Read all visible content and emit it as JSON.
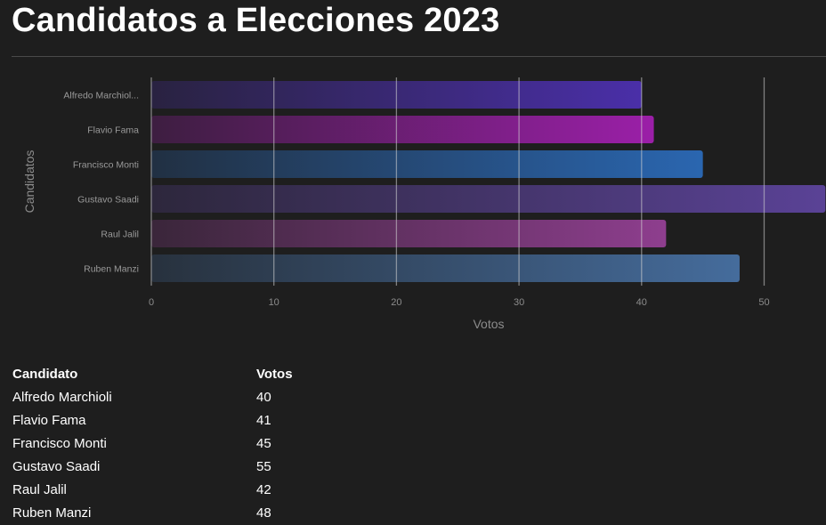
{
  "page_title": "Candidatos a Elecciones 2023",
  "chart_data": {
    "type": "bar",
    "orientation": "horizontal",
    "categories": [
      "Alfredo Marchiol...",
      "Flavio Fama",
      "Francisco Monti",
      "Gustavo Saadi",
      "Raul Jalil",
      "Ruben Manzi"
    ],
    "values": [
      40,
      41,
      45,
      55,
      42,
      48
    ],
    "xlabel": "Votos",
    "ylabel": "Candidatos",
    "xlim": [
      0,
      55
    ],
    "xticks": [
      0,
      10,
      20,
      30,
      40,
      50
    ],
    "grid": true,
    "bar_colors": [
      "#4a2fa8",
      "#9b1fa8",
      "#2a66b0",
      "#5a4296",
      "#8e3e8e",
      "#456c9c"
    ]
  },
  "table": {
    "headers": [
      "Candidato",
      "Votos"
    ],
    "rows": [
      [
        "Alfredo Marchioli",
        "40"
      ],
      [
        "Flavio Fama",
        "41"
      ],
      [
        "Francisco Monti",
        "45"
      ],
      [
        "Gustavo Saadi",
        "55"
      ],
      [
        "Raul Jalil",
        "42"
      ],
      [
        "Ruben Manzi",
        "48"
      ]
    ]
  }
}
